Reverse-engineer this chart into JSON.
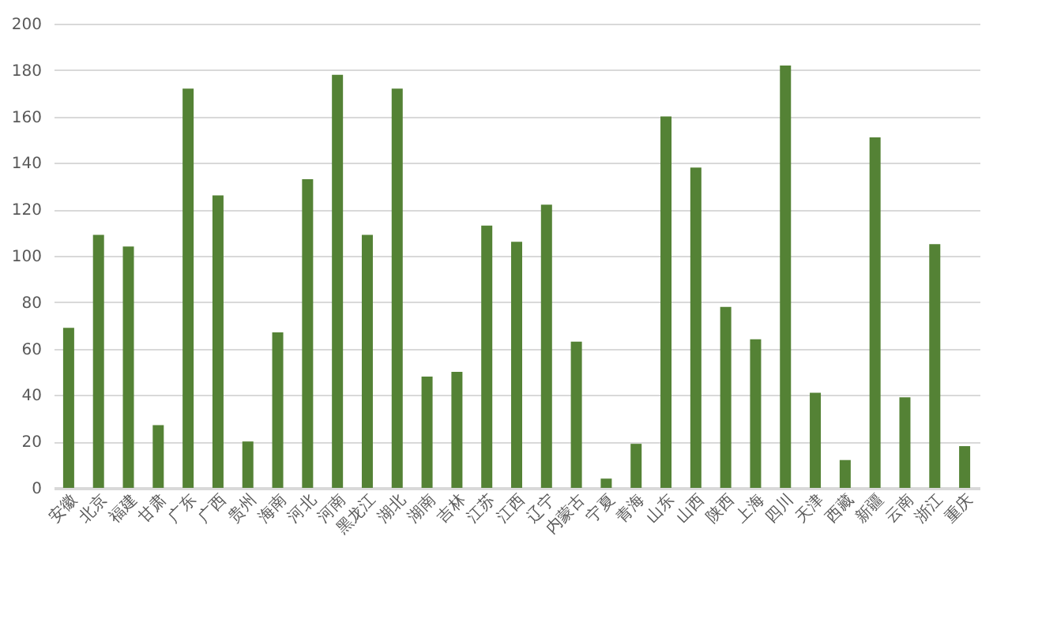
{
  "chart_data": {
    "type": "bar",
    "categories": [
      "安徽",
      "北京",
      "福建",
      "甘肃",
      "广东",
      "广西",
      "贵州",
      "海南",
      "河北",
      "河南",
      "黑龙江",
      "湖北",
      "湖南",
      "吉林",
      "江苏",
      "江西",
      "辽宁",
      "内蒙古",
      "宁夏",
      "青海",
      "山东",
      "山西",
      "陕西",
      "上海",
      "四川",
      "天津",
      "西藏",
      "新疆",
      "云南",
      "浙江",
      "重庆"
    ],
    "values": [
      69,
      109,
      104,
      27,
      172,
      126,
      20,
      67,
      133,
      178,
      109,
      172,
      48,
      50,
      113,
      106,
      122,
      63,
      4,
      19,
      160,
      138,
      78,
      64,
      182,
      41,
      12,
      151,
      39,
      105,
      18
    ],
    "color": "#548235",
    "ylim": [
      0,
      200
    ],
    "yticks": [
      0,
      20,
      40,
      60,
      80,
      100,
      120,
      140,
      160,
      180,
      200
    ],
    "grid": "y"
  }
}
